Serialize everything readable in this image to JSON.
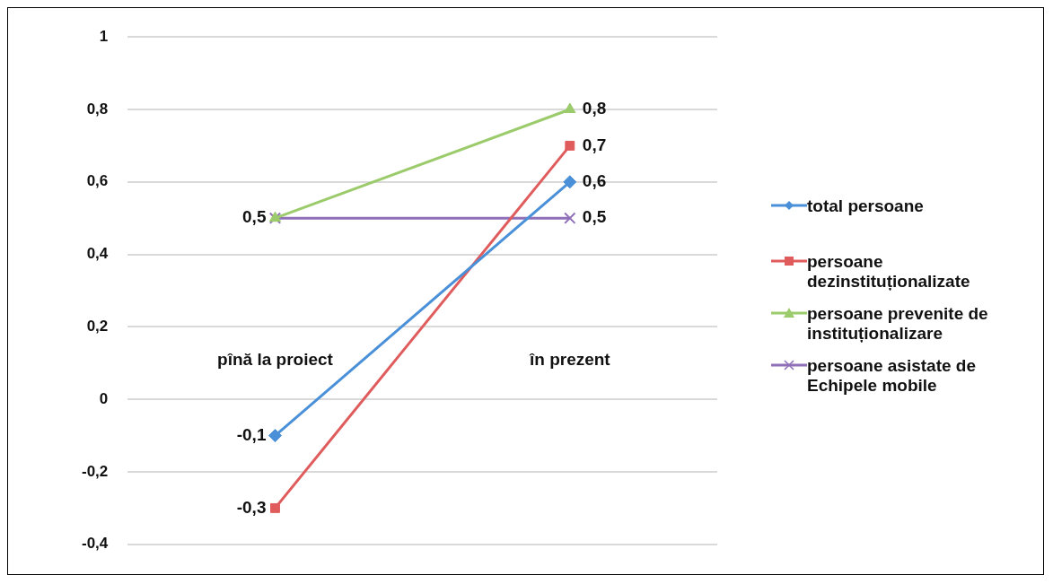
{
  "chart_data": {
    "type": "line",
    "categories": [
      "pînă la proiect",
      "în prezent"
    ],
    "series": [
      {
        "name": "total persoane",
        "color": "#4a90d9",
        "marker": "diamond",
        "values": [
          -0.1,
          0.6
        ],
        "value_labels": [
          "-0,1",
          "0,6"
        ]
      },
      {
        "name": "persoane dezinstituționalizate",
        "color": "#e05c5c",
        "marker": "square",
        "values": [
          -0.3,
          0.7
        ],
        "value_labels": [
          "-0,3",
          "0,7"
        ]
      },
      {
        "name": "persoane prevenite de instituționalizare",
        "color": "#9bcb6b",
        "marker": "triangle",
        "values": [
          0.5,
          0.8
        ],
        "value_labels": [
          null,
          "0,8"
        ]
      },
      {
        "name": "persoane asistate de Echipele mobile",
        "color": "#8e6fb8",
        "marker": "cross",
        "values": [
          0.5,
          0.5
        ],
        "value_labels": [
          "0,5",
          "0,5"
        ]
      }
    ],
    "ylim": [
      -0.4,
      1
    ],
    "yticks": [
      {
        "value": -0.4,
        "label": "-0,4"
      },
      {
        "value": -0.2,
        "label": "-0,2"
      },
      0,
      {
        "value": 0.2,
        "label": "0,2"
      },
      {
        "value": 0.4,
        "label": "0,4"
      },
      {
        "value": 0.6,
        "label": "0,6"
      },
      {
        "value": 0.8,
        "label": "0,8"
      },
      1
    ],
    "grid": "y",
    "legend": "right",
    "line_style": "solid"
  }
}
